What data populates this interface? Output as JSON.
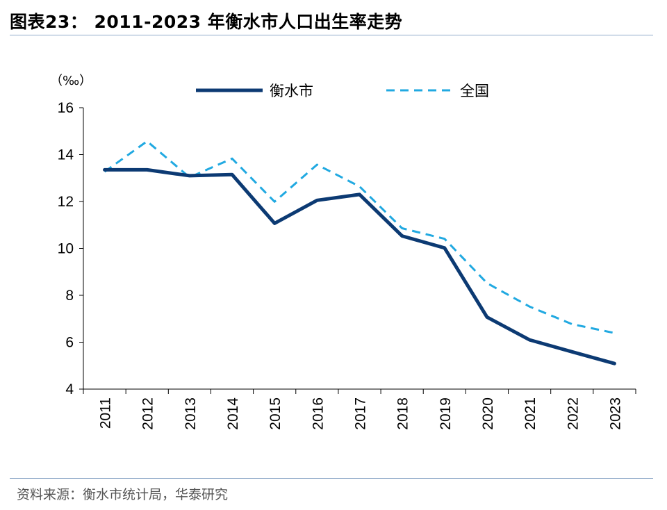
{
  "header": {
    "title": "图表23：  2011-2023 年衡水市人口出生率走势"
  },
  "footer": {
    "source": "资料来源：衡水市统计局，华泰研究"
  },
  "chart_data": {
    "type": "line",
    "title": "",
    "ylabel": "（‰）",
    "xlabel": "",
    "ylim": [
      4,
      16
    ],
    "yticks": [
      4,
      6,
      8,
      10,
      12,
      14,
      16
    ],
    "grid": false,
    "legend_position": "top",
    "categories": [
      "2011",
      "2012",
      "2013",
      "2014",
      "2015",
      "2016",
      "2017",
      "2018",
      "2019",
      "2020",
      "2021",
      "2022",
      "2023"
    ],
    "series": [
      {
        "name": "衡水市",
        "style": "solid",
        "color": "#0c3a73",
        "values": [
          13.35,
          13.35,
          13.1,
          13.15,
          11.07,
          12.05,
          12.3,
          10.53,
          10.02,
          7.07,
          6.1,
          5.59,
          5.09
        ]
      },
      {
        "name": "全国",
        "style": "dashed",
        "color": "#21a9e1",
        "values": [
          13.27,
          14.57,
          13.03,
          13.83,
          11.99,
          13.57,
          12.64,
          10.86,
          10.41,
          8.52,
          7.52,
          6.77,
          6.39
        ]
      }
    ]
  }
}
